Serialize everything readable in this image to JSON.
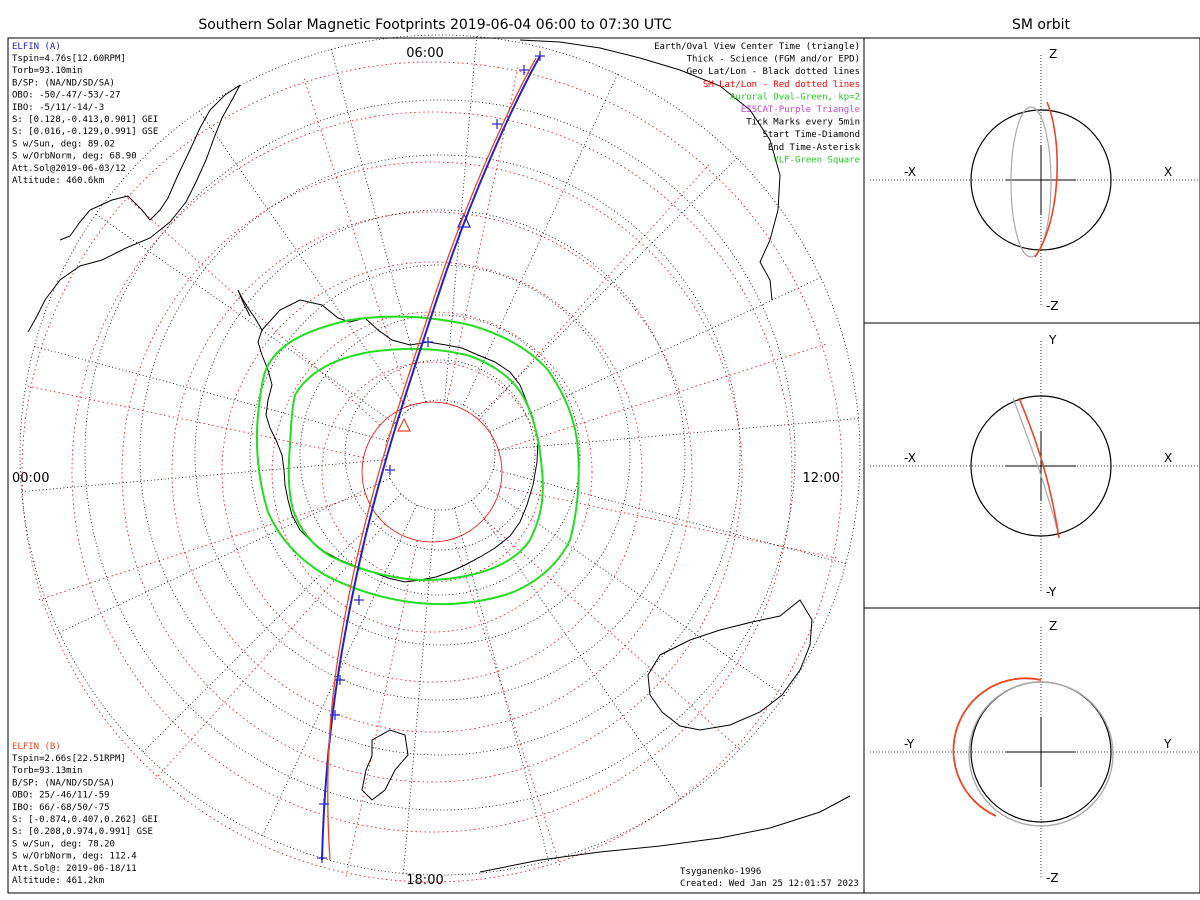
{
  "title": "Southern Solar Magnetic Footprints 2019-06-04 06:00 to 07:30 UTC",
  "orbit_title": "SM orbit",
  "clock_labels": {
    "top": "06:00",
    "left": "00:00",
    "right": "12:00",
    "bottom": "18:00"
  },
  "elfin_a": {
    "name": "ELFIN (A)",
    "lines": [
      "Tspin=4.76s[12.60RPM]",
      "Torb=93.10min",
      "B/SP: (NA/ND/SD/SA)",
      "OBO: -50/-47/-53/-27",
      "IBO: -5/11/-14/-3",
      "S: [0.128,-0.413,0.901] GEI",
      "S: [0.016,-0.129,0.991] GSE",
      "S w/Sun, deg: 89.02",
      "S w/OrbNorm, deg: 68.90",
      "Att.Sol@2019-06-03/12",
      "Altitude: 460.6km"
    ],
    "color": "#2222cc"
  },
  "elfin_b": {
    "name": "ELFIN (B)",
    "lines": [
      "Tspin=2.66s[22.51RPM]",
      "Torb=93.13min",
      "B/SP: (NA/ND/SD/SA)",
      "OBO: 25/-46/11/-59",
      "IBO: 66/-68/50/-75",
      "S: [-0.874,0.407,0.262] GEI",
      "S: [0.208,0.974,0.991] GSE",
      "S w/Sun, deg: 78.20",
      "S w/OrbNorm, deg: 112.4",
      "Att.Sol@: 2019-06-18/11",
      "Altitude: 461.2km"
    ],
    "color": "#ee4422"
  },
  "legend": [
    {
      "text": "Earth/Oval View Center Time (triangle)",
      "color": "#000000"
    },
    {
      "text": "Thick - Science (FGM and/or EPD)",
      "color": "#000000"
    },
    {
      "text": "Geo Lat/Lon - Black dotted lines",
      "color": "#000000"
    },
    {
      "text": "SM Lat/Lon - Red dotted lines",
      "color": "#ee0000"
    },
    {
      "text": "Auroral Oval-Green, kp=2",
      "color": "#22cc22"
    },
    {
      "text": "EISCAT-Purple Triangle",
      "color": "#cc44cc"
    },
    {
      "text": "Tick Marks every 5min",
      "color": "#000000"
    },
    {
      "text": "Start Time-Diamond",
      "color": "#000000"
    },
    {
      "text": "End Time-Asterisk",
      "color": "#000000"
    },
    {
      "text": "VLF-Green Square",
      "color": "#22cc22"
    }
  ],
  "credits": {
    "model": "Tsyganenko-1996",
    "created": "Created: Wed Jan 25 12:01:57 2023"
  },
  "orbit_panels": [
    {
      "up": "Z",
      "down": "-Z",
      "left": "-X",
      "right": "X"
    },
    {
      "up": "Y",
      "down": "-Y",
      "left": "-X",
      "right": "X"
    },
    {
      "up": "Z",
      "down": "-Z",
      "left": "-Y",
      "right": "Y"
    }
  ],
  "colors": {
    "oval": "#22dd22",
    "sm_grid": "#ee0000",
    "geo_grid": "#000000",
    "track_a": "#2222cc",
    "track_b": "#ee4422",
    "orbit_gray": "#aaaaaa"
  }
}
